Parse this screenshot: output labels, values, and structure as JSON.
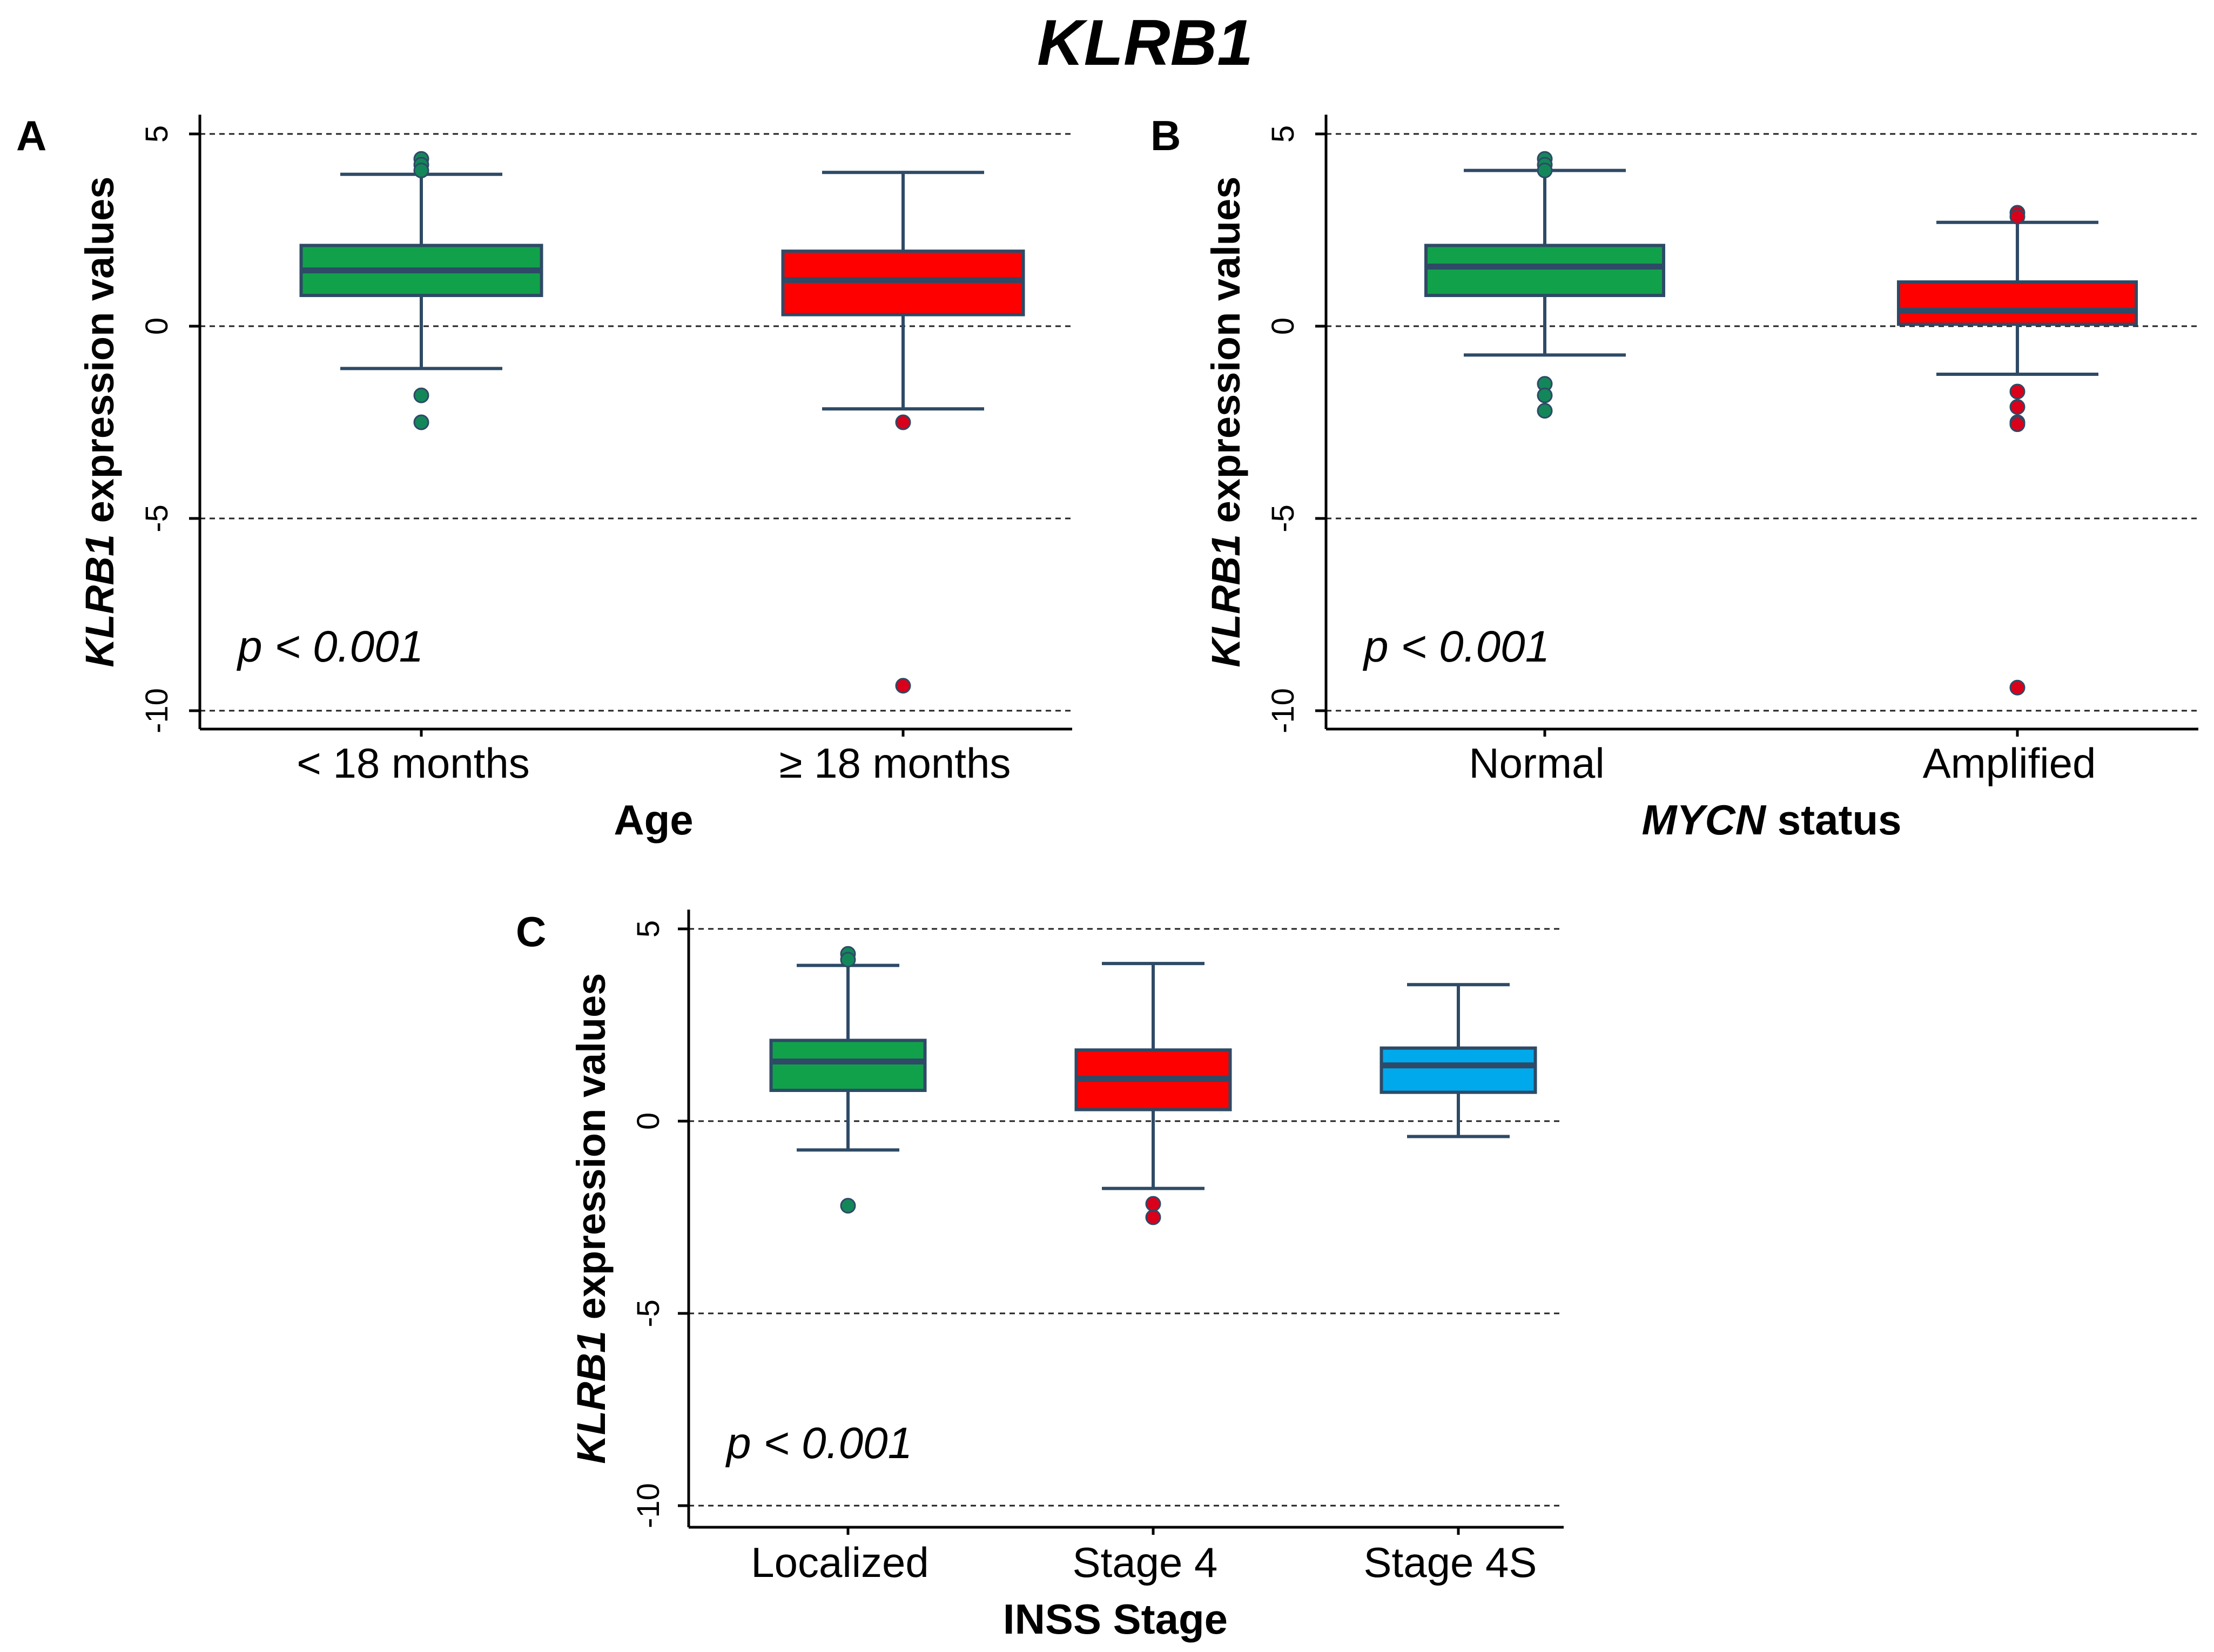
{
  "figure_title": "KLRB1",
  "chart_data": [
    {
      "type": "box",
      "panel_label": "A",
      "ylabel_gene": "KLRB1",
      "ylabel_rest": " expression values",
      "xlabel_italic": "",
      "xlabel_rest": "Age",
      "y_ticks": [
        5,
        0,
        -5,
        -10
      ],
      "ylim": [
        -10.7,
        5.5
      ],
      "grid_lines": [
        5,
        0,
        -5,
        -10
      ],
      "p_value_text": "p < 0.001",
      "groups": [
        {
          "label": "< 18 months",
          "color": "#12a14b",
          "q1": 0.8,
          "median": 1.45,
          "q3": 2.1,
          "whisker_low": -1.1,
          "whisker_high": 3.95,
          "outliers": [
            4.35,
            4.2,
            4.05,
            -1.8,
            -2.5
          ]
        },
        {
          "label": "≥ 18 months",
          "color": "#ff0000",
          "q1": 0.3,
          "median": 1.2,
          "q3": 1.95,
          "whisker_low": -2.15,
          "whisker_high": 4.0,
          "outliers": [
            -2.5,
            -9.35
          ]
        }
      ]
    },
    {
      "type": "box",
      "panel_label": "B",
      "ylabel_gene": "KLRB1",
      "ylabel_rest": " expression values",
      "xlabel_italic": "MYCN",
      "xlabel_rest": " status",
      "y_ticks": [
        5,
        0,
        -5,
        -10
      ],
      "ylim": [
        -10.7,
        5.5
      ],
      "grid_lines": [
        5,
        0,
        -5,
        -10
      ],
      "p_value_text": "p < 0.001",
      "groups": [
        {
          "label": "Normal",
          "color": "#12a14b",
          "q1": 0.8,
          "median": 1.55,
          "q3": 2.1,
          "whisker_low": -0.75,
          "whisker_high": 4.05,
          "outliers": [
            4.35,
            4.2,
            4.05,
            -1.5,
            -1.8,
            -2.2
          ]
        },
        {
          "label": "Amplified",
          "color": "#ff0000",
          "q1": 0.05,
          "median": 0.4,
          "q3": 1.15,
          "whisker_low": -1.25,
          "whisker_high": 2.7,
          "outliers": [
            2.95,
            2.85,
            -1.7,
            -2.1,
            -2.5,
            -2.55,
            -9.4
          ]
        }
      ]
    },
    {
      "type": "box",
      "panel_label": "C",
      "ylabel_gene": "KLRB1",
      "ylabel_rest": " expression values",
      "xlabel_italic": "",
      "xlabel_rest": "INSS Stage",
      "y_ticks": [
        5,
        0,
        -5,
        -10
      ],
      "ylim": [
        -10.7,
        5.5
      ],
      "grid_lines": [
        5,
        0,
        -5,
        -10
      ],
      "p_value_text": "p < 0.001",
      "groups": [
        {
          "label": "Localized",
          "color": "#12a14b",
          "q1": 0.8,
          "median": 1.55,
          "q3": 2.1,
          "whisker_low": -0.75,
          "whisker_high": 4.05,
          "outliers": [
            4.35,
            4.2,
            -2.2
          ]
        },
        {
          "label": "Stage 4",
          "color": "#ff0000",
          "q1": 0.3,
          "median": 1.1,
          "q3": 1.85,
          "whisker_low": -1.75,
          "whisker_high": 4.1,
          "outliers": [
            -2.15,
            -2.5
          ]
        },
        {
          "label": "Stage 4S",
          "color": "#00a8ec",
          "q1": 0.75,
          "median": 1.45,
          "q3": 1.9,
          "whisker_low": -0.4,
          "whisker_high": 3.55,
          "outliers": []
        }
      ]
    }
  ]
}
